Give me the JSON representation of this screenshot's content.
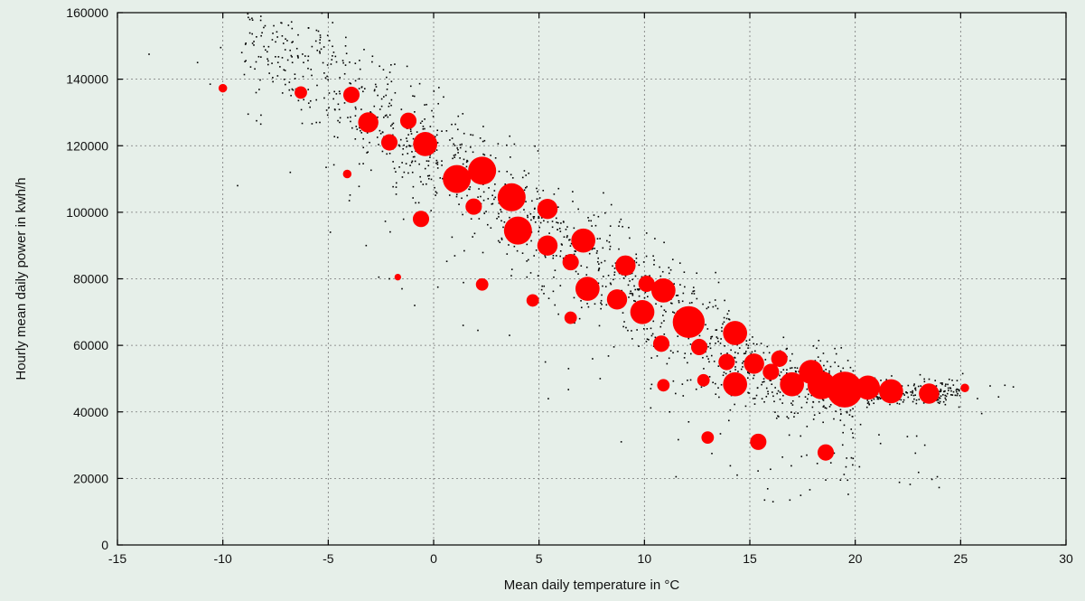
{
  "chart_data": {
    "type": "scatter",
    "title": "",
    "xlabel": "Mean daily temperature in °C",
    "ylabel": "Hourly mean daily power in kwh/h",
    "xlim": [
      -15,
      30
    ],
    "ylim": [
      0,
      160000
    ],
    "x_ticks": [
      "-15",
      "-10",
      "-5",
      "0",
      "5",
      "10",
      "15",
      "20",
      "25",
      "30"
    ],
    "y_ticks": [
      "0",
      "20000",
      "40000",
      "60000",
      "80000",
      "100000",
      "120000",
      "140000",
      "160000"
    ],
    "grid": true,
    "legend": "none",
    "series": [
      {
        "marker": "dot",
        "color": "#000000",
        "points": [
          [
            -13.5,
            147500
          ],
          [
            -11.2,
            145000
          ],
          [
            -10.1,
            149500
          ],
          [
            -9.1,
            148000
          ],
          [
            -10.6,
            138500
          ],
          [
            -8.4,
            127500
          ],
          [
            -8.2,
            126500
          ],
          [
            -8.8,
            129500
          ],
          [
            -9.3,
            108000
          ],
          [
            -7.4,
            141000
          ],
          [
            -6.7,
            145000
          ],
          [
            -6.8,
            112000
          ],
          [
            -5.4,
            127000
          ],
          [
            -5.1,
            113500
          ],
          [
            -4.9,
            94000
          ],
          [
            -4.0,
            103500
          ],
          [
            -3.2,
            90000
          ],
          [
            -2.6,
            80500
          ],
          [
            -2.1,
            80000
          ],
          [
            -1.5,
            77000
          ],
          [
            -0.9,
            72000
          ],
          [
            0.2,
            77500
          ],
          [
            1.4,
            66000
          ],
          [
            2.1,
            64500
          ],
          [
            3.6,
            63000
          ],
          [
            5.3,
            55000
          ],
          [
            6.4,
            53000
          ],
          [
            7.9,
            50000
          ],
          [
            8.9,
            31000
          ],
          [
            10.3,
            47000
          ],
          [
            11.2,
            40000
          ],
          [
            11.5,
            20500
          ],
          [
            12.1,
            37000
          ],
          [
            13.2,
            27500
          ],
          [
            14.4,
            21000
          ],
          [
            15.7,
            13500
          ],
          [
            16.1,
            13000
          ],
          [
            16.9,
            13500
          ],
          [
            17.7,
            27000
          ],
          [
            18.2,
            24500
          ],
          [
            19.3,
            19500
          ],
          [
            19.9,
            26000
          ],
          [
            20.2,
            23500
          ],
          [
            21.2,
            30500
          ],
          [
            22.9,
            42500
          ],
          [
            23.3,
            30000
          ],
          [
            24.2,
            43000
          ],
          [
            25.1,
            51500
          ],
          [
            26.0,
            39500
          ],
          [
            26.4,
            47800
          ],
          [
            27.1,
            48000
          ],
          [
            27.5,
            47500
          ],
          [
            26.8,
            44500
          ],
          [
            25.8,
            44000
          ],
          [
            24.6,
            49500
          ]
        ]
      },
      {
        "marker": "circle",
        "color": "#ff0000",
        "points": [
          [
            -10.0,
            137300,
            1
          ],
          [
            -6.3,
            136000,
            2
          ],
          [
            -3.9,
            135300,
            3
          ],
          [
            -3.1,
            127000,
            4
          ],
          [
            -1.2,
            127500,
            3
          ],
          [
            -4.1,
            111500,
            1
          ],
          [
            -2.1,
            121000,
            3
          ],
          [
            -0.4,
            120500,
            5
          ],
          [
            1.1,
            110000,
            6
          ],
          [
            2.3,
            112500,
            6
          ],
          [
            3.7,
            104500,
            6
          ],
          [
            1.9,
            101700,
            3
          ],
          [
            -0.6,
            98000,
            3
          ],
          [
            5.4,
            101000,
            4
          ],
          [
            4.0,
            94500,
            6
          ],
          [
            5.4,
            90000,
            4
          ],
          [
            7.1,
            91500,
            5
          ],
          [
            -1.7,
            80500,
            0.5
          ],
          [
            2.3,
            78300,
            2
          ],
          [
            6.5,
            85000,
            3
          ],
          [
            9.1,
            84000,
            4
          ],
          [
            4.7,
            73500,
            2
          ],
          [
            7.3,
            77000,
            5
          ],
          [
            8.7,
            73800,
            4
          ],
          [
            10.1,
            78500,
            3
          ],
          [
            10.9,
            76500,
            5
          ],
          [
            6.5,
            68300,
            2
          ],
          [
            9.9,
            70000,
            5
          ],
          [
            12.1,
            67000,
            7
          ],
          [
            14.3,
            63700,
            5
          ],
          [
            10.8,
            60500,
            3
          ],
          [
            12.6,
            59500,
            3
          ],
          [
            13.9,
            55000,
            3
          ],
          [
            15.2,
            54500,
            4
          ],
          [
            16.0,
            52000,
            3
          ],
          [
            16.4,
            56000,
            3
          ],
          [
            17.9,
            52000,
            5
          ],
          [
            10.9,
            48000,
            2
          ],
          [
            12.8,
            49500,
            2
          ],
          [
            14.3,
            48300,
            5
          ],
          [
            17.0,
            48300,
            5
          ],
          [
            18.4,
            48000,
            6
          ],
          [
            19.5,
            46700,
            8
          ],
          [
            20.6,
            47300,
            5
          ],
          [
            21.7,
            46200,
            5
          ],
          [
            23.5,
            45500,
            4
          ],
          [
            25.2,
            47200,
            1
          ],
          [
            13.0,
            32300,
            2
          ],
          [
            15.4,
            31000,
            3
          ],
          [
            18.6,
            27800,
            3
          ]
        ]
      }
    ]
  }
}
